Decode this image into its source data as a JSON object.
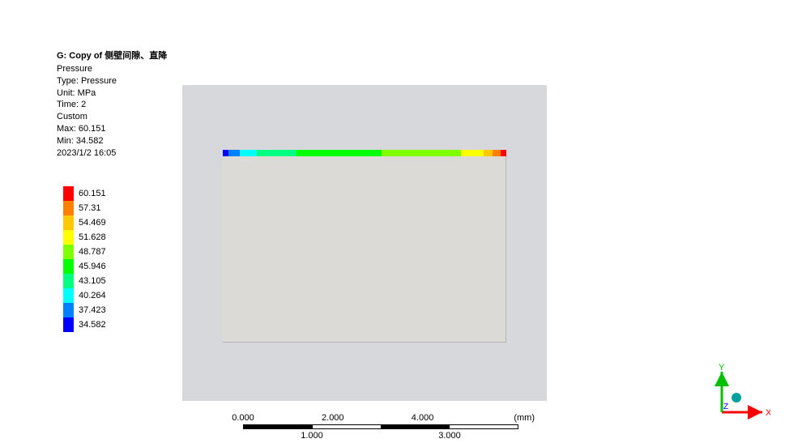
{
  "info": {
    "title": "G: Copy of 侧壁间隙、直降",
    "result_name": "Pressure",
    "type_line": "Type: Pressure",
    "unit_line": "Unit: MPa",
    "time_line": "Time: 2",
    "custom_line": "Custom",
    "max_line": "Max: 60.151",
    "min_line": "Min: 34.582",
    "timestamp": "2023/1/2 16:05"
  },
  "legend": {
    "entries": [
      {
        "label": "60.151",
        "color": "#ff0000"
      },
      {
        "label": "57.31",
        "color": "#ff7f00"
      },
      {
        "label": "54.469",
        "color": "#ffc800"
      },
      {
        "label": "51.628",
        "color": "#ffff00"
      },
      {
        "label": "48.787",
        "color": "#80ff00"
      },
      {
        "label": "45.946",
        "color": "#00ff00"
      },
      {
        "label": "43.105",
        "color": "#00ff80"
      },
      {
        "label": "40.264",
        "color": "#00ffff"
      },
      {
        "label": "37.423",
        "color": "#007fff"
      },
      {
        "label": "34.582",
        "color": "#0000ff"
      }
    ]
  },
  "viewport": {
    "background_color": "#d7d8dc",
    "body_color": "#dcdad6",
    "pressure_band": [
      {
        "width_pct": 2,
        "color": "#0000ff"
      },
      {
        "width_pct": 4,
        "color": "#007fff"
      },
      {
        "width_pct": 6,
        "color": "#00ffff"
      },
      {
        "width_pct": 14,
        "color": "#00ff80"
      },
      {
        "width_pct": 30,
        "color": "#00ff00"
      },
      {
        "width_pct": 28,
        "color": "#80ff00"
      },
      {
        "width_pct": 8,
        "color": "#ffff00"
      },
      {
        "width_pct": 3,
        "color": "#ffc800"
      },
      {
        "width_pct": 3,
        "color": "#ff7f00"
      },
      {
        "width_pct": 2,
        "color": "#ff0000"
      }
    ]
  },
  "scale": {
    "top_labels": [
      "0.000",
      "2.000",
      "4.000"
    ],
    "unit": "(mm)",
    "bottom_labels": [
      "1.000",
      "3.000"
    ],
    "segments": [
      "dark",
      "light",
      "dark",
      "light"
    ]
  },
  "triad": {
    "x": {
      "label": "X",
      "color": "#ff0000"
    },
    "y": {
      "label": "Y",
      "color": "#00c000"
    },
    "z": {
      "label": "Z",
      "color": "#0000ff"
    },
    "ball_color": "#00a0a0"
  }
}
